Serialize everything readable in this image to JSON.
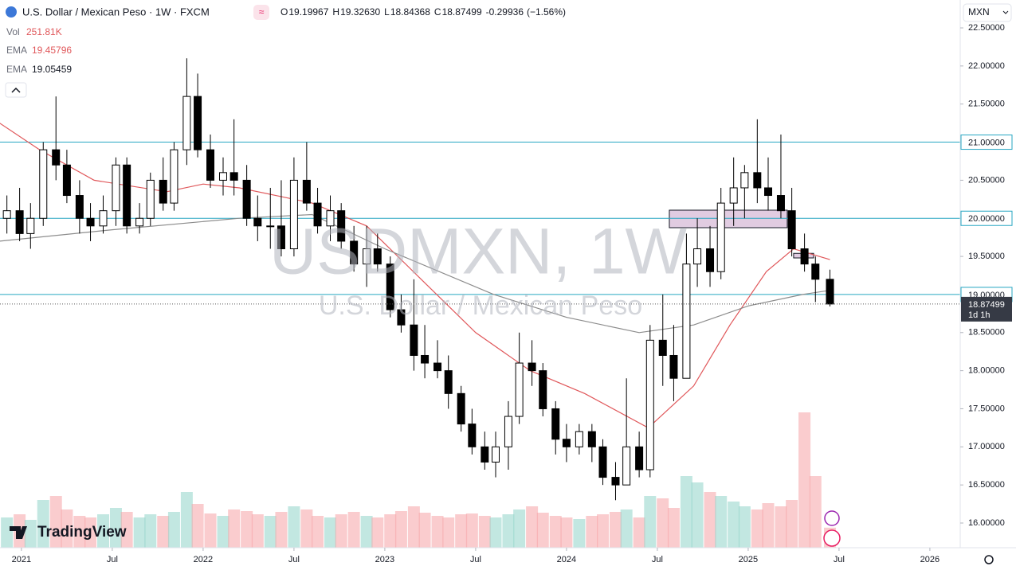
{
  "chart_data": {
    "type": "candlestick",
    "title": "U.S. Dollar / Mexican Peso · 1W · FXCM",
    "ohlc": [
      {
        "label": "O",
        "value": 19.19967
      },
      {
        "label": "H",
        "value": 19.3263
      },
      {
        "label": "L",
        "value": 18.84368
      },
      {
        "label": "C",
        "value": 18.87499
      }
    ],
    "ohlc_values_printed": [
      "19.19967",
      "19.32630",
      "18.84368",
      "18.87499"
    ],
    "change": -0.29936,
    "change_pct_label": "(−1.56%)",
    "volume_label": "Vol",
    "volume_now": "251.81K",
    "currency": "MXN",
    "watermark": "USDMXN, 1W",
    "watermark_subtitle": "U.S. Dollar / Mexican Peso",
    "logo": "TradingView",
    "last_price": {
      "value": 18.87499,
      "label": "18.87499",
      "countdown": "1d 1h"
    },
    "up_color": "#ffffff",
    "down_color": "#000000",
    "xlim": [
      2020.882,
      2026.167
    ],
    "ylim": [
      15.676,
      22.866
    ],
    "vlim": [
      0,
      1800
    ],
    "xticks": [
      {
        "value": 2021,
        "label": "2021"
      },
      {
        "value": 2021.5,
        "label": "Jul"
      },
      {
        "value": 2022,
        "label": "2022"
      },
      {
        "value": 2022.5,
        "label": "Jul"
      },
      {
        "value": 2023,
        "label": "2023"
      },
      {
        "value": 2023.5,
        "label": "Jul"
      },
      {
        "value": 2024,
        "label": "2024"
      },
      {
        "value": 2024.5,
        "label": "Jul"
      },
      {
        "value": 2025,
        "label": "2025"
      },
      {
        "value": 2025.5,
        "label": "Jul"
      },
      {
        "value": 2026,
        "label": "2026"
      }
    ],
    "yticks": [
      {
        "value": 16,
        "label": "16.00000"
      },
      {
        "value": 16.5,
        "label": "16.50000"
      },
      {
        "value": 17,
        "label": "17.00000"
      },
      {
        "value": 17.5,
        "label": "17.50000"
      },
      {
        "value": 18,
        "label": "18.00000"
      },
      {
        "value": 18.5,
        "label": "18.50000"
      },
      {
        "value": 19.5,
        "label": "19.50000"
      },
      {
        "value": 20.5,
        "label": "20.50000"
      },
      {
        "value": 21.5,
        "label": "21.50000"
      },
      {
        "value": 22,
        "label": "22.00000"
      },
      {
        "value": 22.5,
        "label": "22.50000"
      }
    ],
    "hlines": [
      {
        "value": 21,
        "label": "21.00000",
        "color": "#26a6c2"
      },
      {
        "value": 20,
        "label": "20.00000",
        "color": "#26a6c2"
      },
      {
        "value": 19,
        "label": "19.00000",
        "color": "#26a6c2"
      }
    ],
    "zones": [
      {
        "x": [
          2024.566,
          2025.215
        ],
        "y": [
          19.877,
          20.107
        ],
        "color": "#d9bfd9"
      },
      {
        "x": [
          2025.25,
          2025.36
        ],
        "y": [
          19.48,
          19.54
        ],
        "color": "#d9bfd9"
      }
    ],
    "candles": {
      "x": [
        2020.92,
        2020.99,
        2021.05,
        2021.12,
        2021.19,
        2021.25,
        2021.32,
        2021.38,
        2021.45,
        2021.52,
        2021.58,
        2021.65,
        2021.71,
        2021.78,
        2021.84,
        2021.91,
        2021.97,
        2022.04,
        2022.11,
        2022.17,
        2022.24,
        2022.3,
        2022.37,
        2022.43,
        2022.5,
        2022.57,
        2022.63,
        2022.7,
        2022.76,
        2022.83,
        2022.9,
        2022.96,
        2023.03,
        2023.09,
        2023.16,
        2023.22,
        2023.29,
        2023.35,
        2023.42,
        2023.48,
        2023.55,
        2023.61,
        2023.68,
        2023.74,
        2023.81,
        2023.87,
        2023.94,
        2024.0,
        2024.07,
        2024.14,
        2024.2,
        2024.27,
        2024.33,
        2024.4,
        2024.46,
        2024.53,
        2024.59,
        2024.66,
        2024.72,
        2024.79,
        2024.85,
        2024.92,
        2024.98,
        2025.05,
        2025.11,
        2025.18,
        2025.24,
        2025.31,
        2025.37,
        2025.45
      ],
      "open": [
        20.0,
        20.1,
        19.8,
        20.0,
        20.9,
        20.7,
        20.3,
        20.0,
        19.9,
        20.1,
        20.7,
        19.9,
        20.0,
        20.5,
        20.2,
        20.9,
        21.6,
        20.9,
        20.5,
        20.6,
        20.5,
        20.0,
        19.9,
        19.9,
        19.6,
        20.5,
        20.2,
        19.9,
        20.1,
        19.7,
        19.4,
        19.6,
        19.4,
        18.8,
        18.6,
        18.2,
        18.1,
        18.0,
        17.7,
        17.3,
        17.0,
        16.8,
        17.0,
        17.4,
        18.1,
        18.0,
        17.5,
        17.1,
        17.0,
        17.2,
        17.0,
        16.6,
        16.5,
        17.0,
        16.7,
        18.4,
        18.2,
        17.9,
        19.4,
        19.6,
        19.3,
        20.2,
        20.4,
        20.6,
        20.4,
        20.3,
        20.1,
        19.6,
        19.4,
        19.19967
      ],
      "high": [
        20.3,
        20.4,
        20.2,
        21.0,
        21.6,
        20.9,
        20.5,
        20.2,
        20.3,
        20.8,
        20.8,
        20.2,
        20.6,
        20.8,
        21.0,
        22.1,
        21.9,
        21.1,
        20.8,
        21.3,
        20.7,
        20.3,
        20.4,
        20.5,
        20.8,
        21.0,
        20.4,
        20.3,
        20.2,
        19.9,
        19.9,
        19.8,
        19.5,
        19.0,
        19.2,
        18.6,
        18.4,
        18.2,
        17.8,
        17.5,
        17.2,
        17.2,
        17.6,
        18.5,
        18.4,
        18.1,
        17.6,
        17.3,
        17.3,
        17.3,
        17.1,
        16.8,
        17.9,
        17.2,
        18.6,
        19.0,
        18.6,
        19.8,
        20.0,
        19.9,
        20.4,
        20.8,
        20.7,
        21.3,
        20.8,
        21.1,
        20.4,
        19.8,
        19.5,
        19.3263
      ],
      "low": [
        19.8,
        19.7,
        19.6,
        19.9,
        20.5,
        20.2,
        19.8,
        19.7,
        19.8,
        19.9,
        19.8,
        19.8,
        19.9,
        20.1,
        20.1,
        20.7,
        20.8,
        20.4,
        20.3,
        20.3,
        19.9,
        19.7,
        19.6,
        19.5,
        19.5,
        20.1,
        19.8,
        19.7,
        19.6,
        19.3,
        19.1,
        19.3,
        18.7,
        18.5,
        18.0,
        17.9,
        17.9,
        17.5,
        17.2,
        16.9,
        16.7,
        16.6,
        16.7,
        17.3,
        17.8,
        17.4,
        16.9,
        16.8,
        16.9,
        16.8,
        16.5,
        16.3,
        16.5,
        16.6,
        16.6,
        17.8,
        17.6,
        17.9,
        19.1,
        19.1,
        19.2,
        19.9,
        20.0,
        20.2,
        20.1,
        20.0,
        19.5,
        19.3,
        18.9,
        18.84368
      ],
      "close": [
        20.1,
        19.8,
        20.0,
        20.9,
        20.7,
        20.3,
        20.0,
        19.9,
        20.1,
        20.7,
        19.9,
        20.0,
        20.5,
        20.2,
        20.9,
        21.6,
        20.9,
        20.5,
        20.6,
        20.5,
        20.0,
        19.9,
        19.9,
        19.6,
        20.5,
        20.2,
        19.9,
        20.1,
        19.7,
        19.4,
        19.6,
        19.4,
        18.8,
        18.6,
        18.2,
        18.1,
        18.0,
        17.7,
        17.3,
        17.0,
        16.8,
        17.0,
        17.4,
        18.1,
        18.0,
        17.5,
        17.1,
        17.0,
        17.2,
        17.0,
        16.6,
        16.5,
        17.0,
        16.7,
        18.4,
        18.2,
        17.9,
        19.4,
        19.6,
        19.3,
        20.2,
        20.4,
        20.6,
        20.4,
        20.3,
        20.1,
        19.6,
        19.4,
        19.2,
        18.87499
      ],
      "volume": [
        380,
        420,
        350,
        600,
        650,
        480,
        400,
        380,
        420,
        500,
        450,
        380,
        420,
        400,
        450,
        700,
        550,
        430,
        400,
        480,
        460,
        420,
        400,
        450,
        520,
        480,
        400,
        380,
        420,
        450,
        400,
        380,
        420,
        460,
        520,
        440,
        400,
        380,
        420,
        430,
        400,
        380,
        420,
        480,
        520,
        440,
        400,
        380,
        360,
        400,
        420,
        450,
        480,
        380,
        650,
        620,
        500,
        900,
        820,
        700,
        650,
        580,
        520,
        480,
        560,
        520,
        600,
        1700,
        900,
        251.81
      ]
    },
    "ema": [
      {
        "name": "EMA",
        "color": "#e0575a",
        "value_now": 19.45796,
        "x": [
          2020.88,
          2021.1,
          2021.4,
          2021.8,
          2022.0,
          2022.2,
          2022.6,
          2022.9,
          2023.2,
          2023.5,
          2023.8,
          2024.1,
          2024.45,
          2024.7,
          2024.9,
          2025.1,
          2025.25,
          2025.45
        ],
        "values": [
          21.25,
          20.9,
          20.5,
          20.35,
          20.45,
          20.4,
          20.2,
          19.9,
          19.2,
          18.5,
          18.0,
          17.7,
          17.25,
          17.8,
          18.6,
          19.3,
          19.6,
          19.45796
        ]
      },
      {
        "name": "EMA",
        "color": "#8c8c8c",
        "value_now": 19.05459,
        "x": [
          2020.88,
          2021.5,
          2022.2,
          2022.6,
          2023.0,
          2023.6,
          2024.0,
          2024.4,
          2024.7,
          2025.0,
          2025.3,
          2025.45
        ],
        "values": [
          19.7,
          19.85,
          20.0,
          20.05,
          19.6,
          19.0,
          18.7,
          18.5,
          18.6,
          18.85,
          19.0,
          19.05459
        ]
      }
    ]
  }
}
